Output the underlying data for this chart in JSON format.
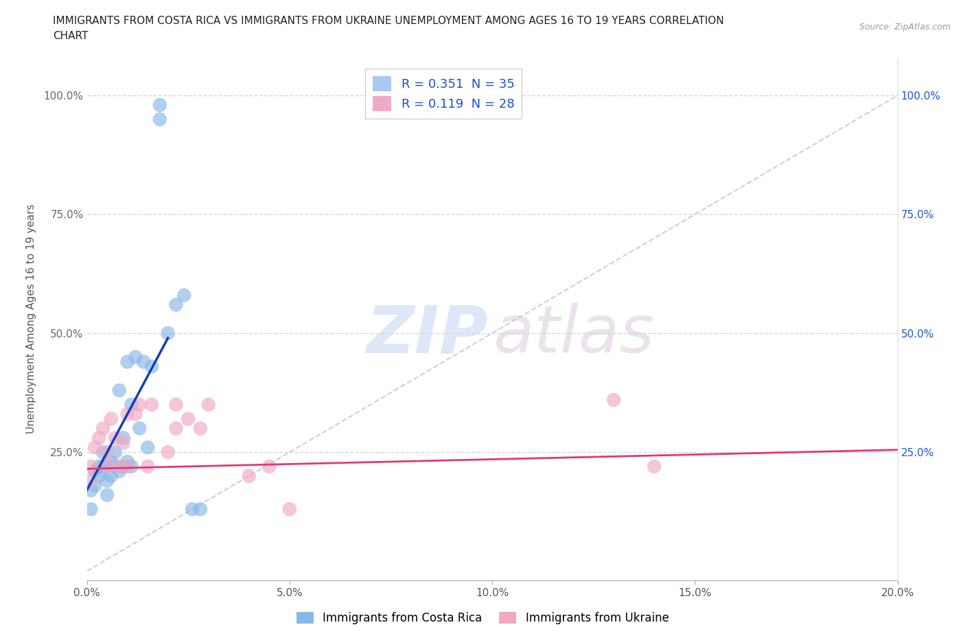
{
  "title_line1": "IMMIGRANTS FROM COSTA RICA VS IMMIGRANTS FROM UKRAINE UNEMPLOYMENT AMONG AGES 16 TO 19 YEARS CORRELATION",
  "title_line2": "CHART",
  "source_text": "Source: ZipAtlas.com",
  "ylabel": "Unemployment Among Ages 16 to 19 years",
  "xlim": [
    0.0,
    0.2
  ],
  "ylim": [
    -0.02,
    1.08
  ],
  "x_ticks": [
    0.0,
    0.05,
    0.1,
    0.15,
    0.2
  ],
  "x_tick_labels": [
    "0.0%",
    "5.0%",
    "10.0%",
    "15.0%",
    "20.0%"
  ],
  "y_ticks": [
    0.0,
    0.25,
    0.5,
    0.75,
    1.0
  ],
  "y_left_labels": [
    "",
    "25.0%",
    "50.0%",
    "75.0%",
    "100.0%"
  ],
  "y_right_labels": [
    "",
    "25.0%",
    "50.0%",
    "75.0%",
    "100.0%"
  ],
  "legend_entries": [
    {
      "label": "R = 0.351  N = 35",
      "color": "#aac8f0"
    },
    {
      "label": "R = 0.119  N = 28",
      "color": "#f0aac8"
    }
  ],
  "costa_rica_color": "#88b8e8",
  "ukraine_color": "#f0a8c4",
  "costa_rica_line_color": "#1040b8",
  "ukraine_line_color": "#e03878",
  "diagonal_color": "#c0c8dc",
  "costa_rica_points_x": [
    0.001,
    0.001,
    0.002,
    0.002,
    0.003,
    0.003,
    0.004,
    0.004,
    0.005,
    0.005,
    0.005,
    0.006,
    0.006,
    0.007,
    0.007,
    0.008,
    0.008,
    0.009,
    0.009,
    0.01,
    0.01,
    0.011,
    0.011,
    0.012,
    0.013,
    0.014,
    0.015,
    0.016,
    0.018,
    0.018,
    0.02,
    0.022,
    0.024,
    0.026,
    0.028
  ],
  "costa_rica_points_y": [
    0.17,
    0.13,
    0.21,
    0.18,
    0.22,
    0.2,
    0.25,
    0.22,
    0.22,
    0.19,
    0.16,
    0.23,
    0.2,
    0.25,
    0.22,
    0.38,
    0.21,
    0.28,
    0.22,
    0.44,
    0.23,
    0.35,
    0.22,
    0.45,
    0.3,
    0.44,
    0.26,
    0.43,
    0.95,
    0.98,
    0.5,
    0.56,
    0.58,
    0.13,
    0.13
  ],
  "ukraine_points_x": [
    0.001,
    0.001,
    0.002,
    0.003,
    0.004,
    0.005,
    0.005,
    0.006,
    0.007,
    0.008,
    0.009,
    0.01,
    0.01,
    0.012,
    0.013,
    0.015,
    0.016,
    0.02,
    0.022,
    0.022,
    0.025,
    0.028,
    0.03,
    0.04,
    0.045,
    0.05,
    0.13,
    0.14
  ],
  "ukraine_points_y": [
    0.22,
    0.19,
    0.26,
    0.28,
    0.3,
    0.25,
    0.22,
    0.32,
    0.28,
    0.22,
    0.27,
    0.33,
    0.22,
    0.33,
    0.35,
    0.22,
    0.35,
    0.25,
    0.35,
    0.3,
    0.32,
    0.3,
    0.35,
    0.2,
    0.22,
    0.13,
    0.36,
    0.22
  ],
  "cr_reg_line_x": [
    0.0,
    0.02
  ],
  "cr_reg_line_y": [
    0.17,
    0.49
  ],
  "uk_reg_line_x": [
    0.0,
    0.2
  ],
  "uk_reg_line_y": [
    0.215,
    0.255
  ],
  "background_color": "#ffffff",
  "grid_color": "#cccccc",
  "watermark_zip_color": "#c8d8f0",
  "watermark_atlas_color": "#d8c8d8"
}
